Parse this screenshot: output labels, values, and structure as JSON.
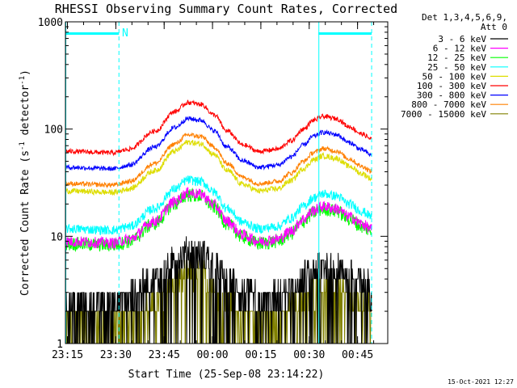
{
  "chart_data": {
    "type": "line",
    "title": "RHESSI Observing Summary Count Rates, Corrected",
    "xlabel": "Start Time (25-Sep-08 23:14:22)",
    "ylabel_main": "Corrected Count Rate (s",
    "ylabel_sup1": "-1",
    "ylabel_mid": " detector",
    "ylabel_sup2": "-1",
    "ylabel_end": ")",
    "y_scale": "log",
    "ylim": [
      1,
      1000
    ],
    "y_ticks": [
      {
        "value": 1,
        "label": "1"
      },
      {
        "value": 10,
        "label": "10"
      },
      {
        "value": 100,
        "label": "100"
      },
      {
        "value": 1000,
        "label": "1000"
      }
    ],
    "x_range_minutes": [
      0,
      100
    ],
    "x_ticks": [
      {
        "minutes": 0.63,
        "label": "23:15"
      },
      {
        "minutes": 15.63,
        "label": "23:30"
      },
      {
        "minutes": 30.63,
        "label": "23:45"
      },
      {
        "minutes": 45.63,
        "label": "00:00"
      },
      {
        "minutes": 60.63,
        "label": "00:15"
      },
      {
        "minutes": 75.63,
        "label": "00:30"
      },
      {
        "minutes": 90.63,
        "label": "00:45"
      }
    ],
    "legend_header": [
      "Det 1,3,4,5,6,9,",
      "Att 0"
    ],
    "legend_position": "right",
    "annotation_N": "N",
    "markers": {
      "night_bars": [
        [
          0,
          16.6
        ],
        [
          78.5,
          95.0
        ]
      ],
      "dashed_lines": [
        16.6,
        95.0
      ],
      "solid_lines": [
        0,
        78.5
      ]
    },
    "curve_shape": {
      "times": [
        0,
        15,
        20,
        28,
        34,
        38,
        42,
        46,
        50,
        55,
        60,
        66,
        70,
        74,
        77,
        80,
        84,
        88,
        92,
        95
      ],
      "factor": [
        1.0,
        0.97,
        1.05,
        1.55,
        2.35,
        2.85,
        2.75,
        2.2,
        1.55,
        1.15,
        1.0,
        1.05,
        1.25,
        1.62,
        1.95,
        2.12,
        2.02,
        1.7,
        1.45,
        1.3
      ]
    },
    "series": [
      {
        "name": "3 - 6 keV",
        "color": "#000000",
        "base": 2.6,
        "noise": 0.35,
        "step": true,
        "drop": true
      },
      {
        "name": "6 - 12 keV",
        "color": "#ff00ff",
        "base": 9.0,
        "noise": 0.12
      },
      {
        "name": "12 - 25 keV",
        "color": "#00ff00",
        "base": 8.6,
        "noise": 0.15
      },
      {
        "name": "25 - 50 keV",
        "color": "#00ffff",
        "base": 11.8,
        "noise": 0.1
      },
      {
        "name": "50 - 100 keV",
        "color": "#dddd00",
        "base": 26.5,
        "noise": 0.06
      },
      {
        "name": "100 - 300 keV",
        "color": "#ff0000",
        "base": 62.0,
        "noise": 0.05
      },
      {
        "name": "300 - 800 keV",
        "color": "#0000ff",
        "base": 44.0,
        "noise": 0.05
      },
      {
        "name": "800 - 7000 keV",
        "color": "#ff8000",
        "base": 31.0,
        "noise": 0.05
      },
      {
        "name": "7000 - 15000 keV",
        "color": "#808000",
        "base": 1.6,
        "noise": 0.3,
        "step": true,
        "drop": true
      }
    ]
  },
  "footer": {
    "timestamp": "15-Oct-2021 12:27"
  }
}
